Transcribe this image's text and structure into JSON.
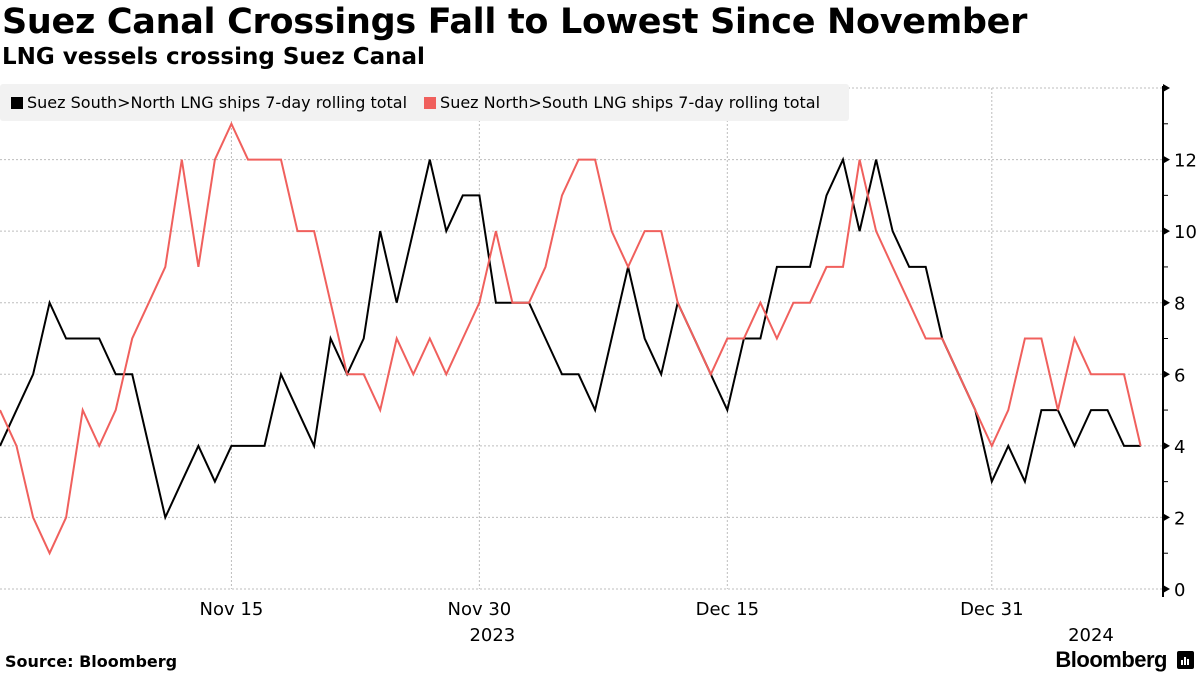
{
  "header": {
    "title": "Suez Canal Crossings Fall to Lowest Since November",
    "subtitle": "LNG vessels crossing Suez Canal"
  },
  "footer": {
    "source": "Source: Bloomberg",
    "brand": "Bloomberg",
    "brand_icon": "bloomberg-chart-icon"
  },
  "colors": {
    "south_north": "#000000",
    "north_south": "#f0605d",
    "legend_bg": "#f2f2f2",
    "grid": "#bdbdbd"
  },
  "chart_data": {
    "type": "line",
    "title": "Suez Canal Crossings Fall to Lowest Since November",
    "subtitle": "LNG vessels crossing Suez Canal",
    "xlabel": "",
    "ylabel": "",
    "x_start": "2023-11-01",
    "x_end": "2024-01-09",
    "x_step": "1 day",
    "ylim": [
      0,
      14
    ],
    "yticks": [
      0,
      2,
      4,
      6,
      8,
      10,
      12,
      14
    ],
    "ytick_labels": [
      "0",
      "2",
      "4",
      "6",
      "8",
      "10",
      "12",
      ""
    ],
    "y_axis_side": "right",
    "xticks": [
      {
        "date": "2023-11-15",
        "label": "Nov 15",
        "sublabel": ""
      },
      {
        "date": "2023-11-30",
        "label": "Nov 30",
        "sublabel": "2023"
      },
      {
        "date": "2023-12-15",
        "label": "Dec 15",
        "sublabel": ""
      },
      {
        "date": "2023-12-31",
        "label": "Dec 31",
        "sublabel": ""
      },
      {
        "date": "2024-01-06",
        "label": "",
        "sublabel": "2024"
      }
    ],
    "grid": true,
    "legend_position": "top-left",
    "series": [
      {
        "name": "Suez South>North LNG ships 7-day rolling total",
        "color": "#000000",
        "values": [
          4,
          5,
          6,
          8,
          7,
          7,
          7,
          6,
          6,
          4,
          2,
          3,
          4,
          3,
          4,
          4,
          4,
          6,
          5,
          4,
          7,
          6,
          7,
          10,
          8,
          10,
          12,
          10,
          11,
          11,
          8,
          8,
          8,
          7,
          6,
          6,
          5,
          7,
          9,
          7,
          6,
          8,
          7,
          6,
          5,
          7,
          7,
          9,
          9,
          9,
          11,
          12,
          10,
          12,
          10,
          9,
          9,
          7,
          6,
          5,
          3,
          4,
          3,
          5,
          5,
          4,
          5,
          5,
          4,
          4
        ]
      },
      {
        "name": "Suez North>South LNG ships 7-day rolling total",
        "color": "#f0605d",
        "values": [
          5,
          4,
          2,
          1,
          2,
          5,
          4,
          5,
          7,
          8,
          9,
          12,
          9,
          12,
          13,
          12,
          12,
          12,
          10,
          10,
          8,
          6,
          6,
          5,
          7,
          6,
          7,
          6,
          7,
          8,
          10,
          8,
          8,
          9,
          11,
          12,
          12,
          10,
          9,
          10,
          10,
          8,
          7,
          6,
          7,
          7,
          8,
          7,
          8,
          8,
          9,
          9,
          12,
          10,
          9,
          8,
          7,
          7,
          6,
          5,
          4,
          5,
          7,
          7,
          5,
          7,
          6,
          6,
          6,
          4
        ]
      }
    ]
  }
}
